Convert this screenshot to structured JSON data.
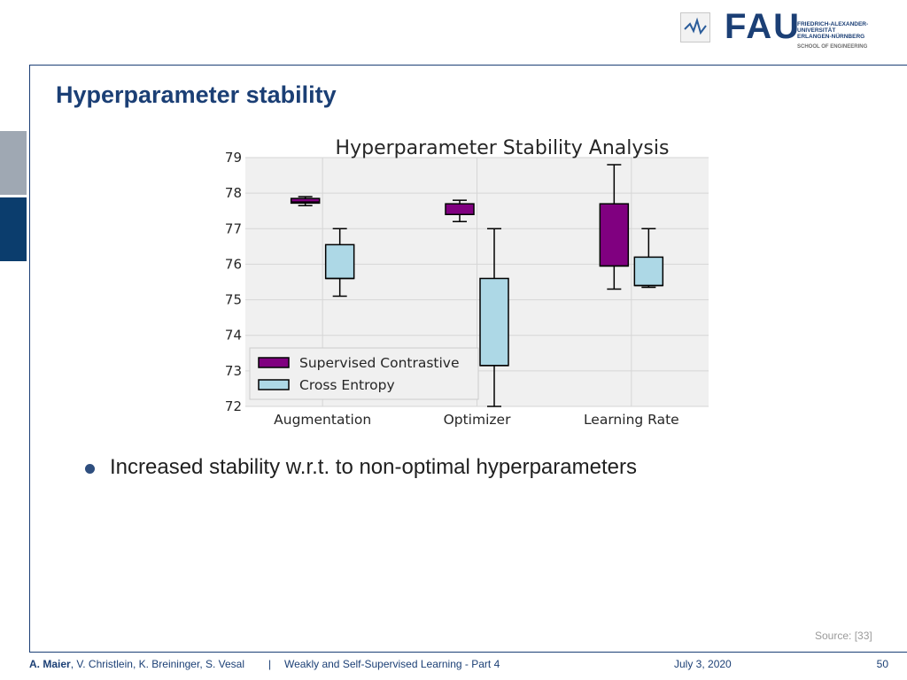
{
  "header": {
    "logo_word": "FAU",
    "university_lines": [
      "FRIEDRICH-ALEXANDER-",
      "UNIVERSITÄT",
      "ERLANGEN-NÜRNBERG"
    ],
    "school": "SCHOOL OF ENGINEERING"
  },
  "slide": {
    "title": "Hyperparameter stability",
    "bullet": "Increased stability w.r.t. to non-optimal hyperparameters",
    "source": "Source: [33]"
  },
  "footer": {
    "lead_author": "A. Maier",
    "other_authors": ", V. Christlein, K. Breininger, S. Vesal",
    "separator": "|",
    "course": "Weakly and Self-Supervised Learning - Part 4",
    "date": "July 3, 2020",
    "page": "50"
  },
  "chart_data": {
    "type": "box",
    "title": "Hyperparameter Stability Analysis",
    "xlabel": "",
    "ylabel": "",
    "ylim": [
      72,
      79
    ],
    "yticks": [
      72,
      73,
      74,
      75,
      76,
      77,
      78,
      79
    ],
    "categories": [
      "Augmentation",
      "Optimizer",
      "Learning Rate"
    ],
    "grid": true,
    "legend_position": "lower-left",
    "series": [
      {
        "name": "Supervised Contrastive",
        "color": "#800080",
        "boxes": [
          {
            "min": 77.65,
            "q1": 77.72,
            "median": 77.75,
            "q3": 77.85,
            "max": 77.9
          },
          {
            "min": 77.2,
            "q1": 77.4,
            "median": 77.4,
            "q3": 77.7,
            "max": 77.8
          },
          {
            "min": 75.3,
            "q1": 75.95,
            "median": 75.95,
            "q3": 77.7,
            "max": 78.8
          }
        ]
      },
      {
        "name": "Cross Entropy",
        "color": "#add8e6",
        "boxes": [
          {
            "min": 75.1,
            "q1": 75.6,
            "median": 75.6,
            "q3": 76.55,
            "max": 77.0
          },
          {
            "min": 72.0,
            "q1": 73.15,
            "median": 73.15,
            "q3": 75.6,
            "max": 77.0
          },
          {
            "min": 75.35,
            "q1": 75.4,
            "median": 75.4,
            "q3": 76.2,
            "max": 77.0
          }
        ]
      }
    ]
  }
}
